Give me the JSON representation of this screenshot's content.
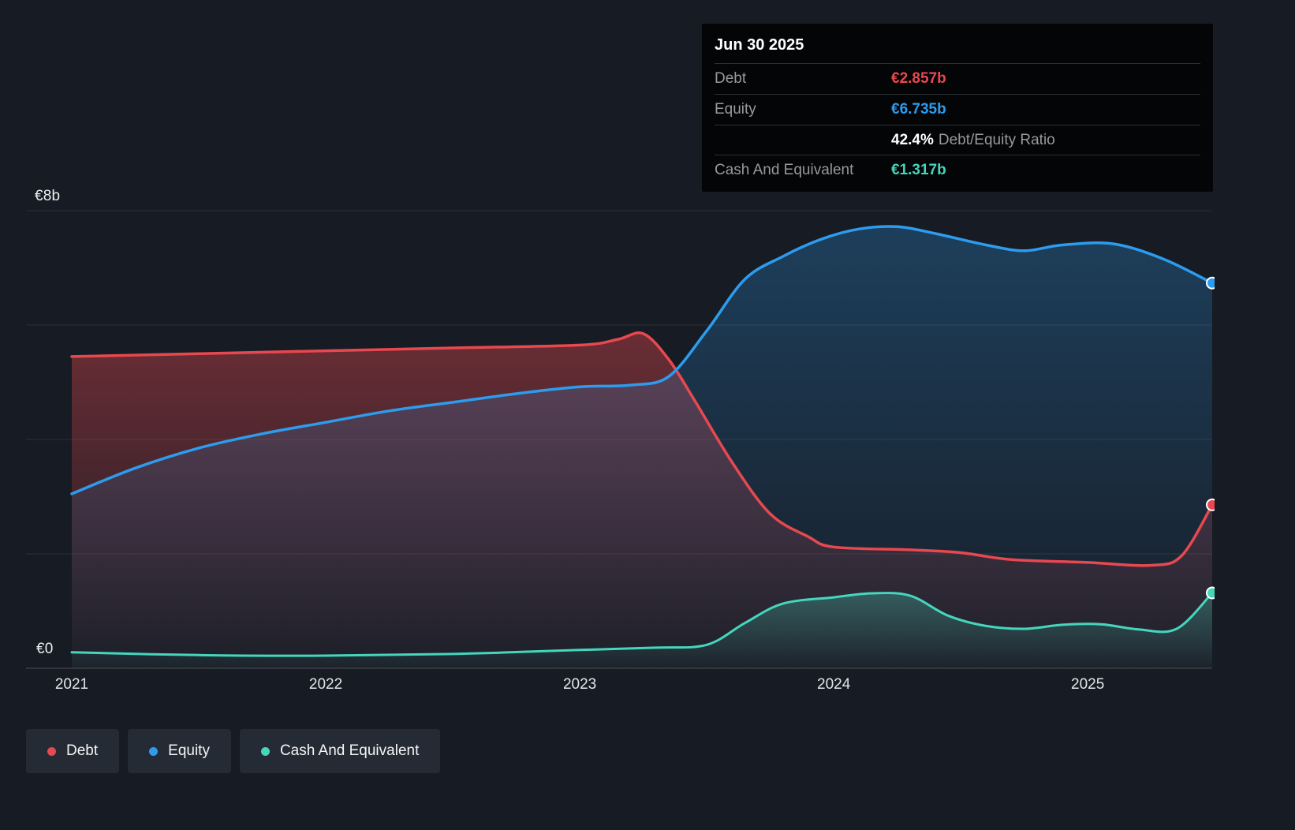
{
  "tooltip": {
    "date": "Jun 30 2025",
    "debt_label": "Debt",
    "debt_value": "€2.857b",
    "equity_label": "Equity",
    "equity_value": "€6.735b",
    "ratio_value": "42.4%",
    "ratio_label": "Debt/Equity Ratio",
    "cash_label": "Cash And Equivalent",
    "cash_value": "€1.317b"
  },
  "axis": {
    "y_top_label": "€8b",
    "y_zero_label": "€0",
    "x_ticks": [
      "2021",
      "2022",
      "2023",
      "2024",
      "2025"
    ]
  },
  "legend": {
    "items": [
      {
        "label": "Debt",
        "color": "#e8484f"
      },
      {
        "label": "Equity",
        "color": "#2d9cee"
      },
      {
        "label": "Cash And Equivalent",
        "color": "#45d6bd"
      }
    ]
  },
  "colors": {
    "debt": "#e8484f",
    "equity": "#2d9cee",
    "cash": "#45d6bd",
    "background": "#171b23"
  },
  "chart_data": {
    "type": "area",
    "title": "Debt to Equity History",
    "x_unit": "decimal_year",
    "x_ticks": [
      2021,
      2022,
      2023,
      2024,
      2025
    ],
    "x_range": [
      2021.0,
      2025.49
    ],
    "y_range": [
      0,
      8
    ],
    "y_gridlines": [
      0,
      2,
      4,
      6,
      8
    ],
    "legend_position": "bottom-left",
    "end_markers": true,
    "series": [
      {
        "name": "Debt",
        "color": "#e8484f",
        "points": [
          [
            2021.0,
            5.45
          ],
          [
            2021.5,
            5.5
          ],
          [
            2022.0,
            5.55
          ],
          [
            2022.5,
            5.6
          ],
          [
            2023.0,
            5.65
          ],
          [
            2023.15,
            5.75
          ],
          [
            2023.25,
            5.85
          ],
          [
            2023.35,
            5.4
          ],
          [
            2023.45,
            4.7
          ],
          [
            2023.6,
            3.6
          ],
          [
            2023.75,
            2.7
          ],
          [
            2023.9,
            2.3
          ],
          [
            2024.0,
            2.12
          ],
          [
            2024.3,
            2.07
          ],
          [
            2024.5,
            2.02
          ],
          [
            2024.7,
            1.9
          ],
          [
            2025.0,
            1.85
          ],
          [
            2025.25,
            1.8
          ],
          [
            2025.37,
            1.97
          ],
          [
            2025.49,
            2.857
          ]
        ]
      },
      {
        "name": "Equity",
        "color": "#2d9cee",
        "points": [
          [
            2021.0,
            3.05
          ],
          [
            2021.25,
            3.5
          ],
          [
            2021.5,
            3.85
          ],
          [
            2021.75,
            4.1
          ],
          [
            2022.0,
            4.3
          ],
          [
            2022.25,
            4.5
          ],
          [
            2022.5,
            4.65
          ],
          [
            2022.75,
            4.8
          ],
          [
            2023.0,
            4.92
          ],
          [
            2023.2,
            4.95
          ],
          [
            2023.35,
            5.1
          ],
          [
            2023.5,
            5.9
          ],
          [
            2023.65,
            6.8
          ],
          [
            2023.8,
            7.2
          ],
          [
            2023.95,
            7.5
          ],
          [
            2024.1,
            7.68
          ],
          [
            2024.25,
            7.72
          ],
          [
            2024.4,
            7.6
          ],
          [
            2024.6,
            7.4
          ],
          [
            2024.75,
            7.3
          ],
          [
            2024.9,
            7.4
          ],
          [
            2025.1,
            7.42
          ],
          [
            2025.3,
            7.15
          ],
          [
            2025.49,
            6.735
          ]
        ]
      },
      {
        "name": "Cash And Equivalent",
        "color": "#45d6bd",
        "points": [
          [
            2021.0,
            0.28
          ],
          [
            2021.5,
            0.23
          ],
          [
            2022.0,
            0.22
          ],
          [
            2022.5,
            0.25
          ],
          [
            2023.0,
            0.32
          ],
          [
            2023.3,
            0.36
          ],
          [
            2023.5,
            0.41
          ],
          [
            2023.65,
            0.79
          ],
          [
            2023.8,
            1.13
          ],
          [
            2024.0,
            1.24
          ],
          [
            2024.15,
            1.31
          ],
          [
            2024.3,
            1.27
          ],
          [
            2024.45,
            0.92
          ],
          [
            2024.6,
            0.74
          ],
          [
            2024.75,
            0.69
          ],
          [
            2024.9,
            0.76
          ],
          [
            2025.05,
            0.77
          ],
          [
            2025.2,
            0.68
          ],
          [
            2025.35,
            0.69
          ],
          [
            2025.49,
            1.317
          ]
        ]
      }
    ]
  }
}
